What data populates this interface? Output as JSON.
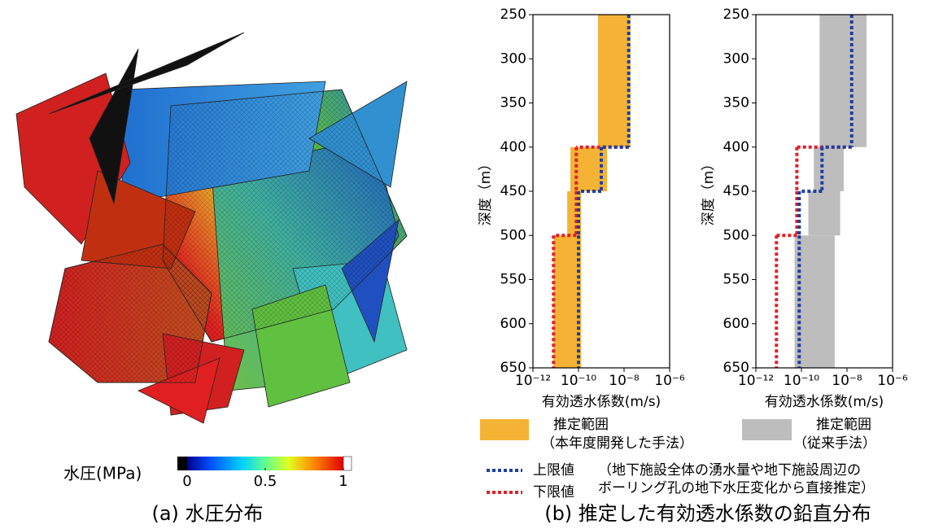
{
  "panel_a": {
    "caption": "(a)  水圧分布",
    "colorbar": {
      "label": "水圧(MPa)",
      "lim": [
        0,
        1
      ],
      "ticks": [
        0,
        0.5,
        1
      ]
    }
  },
  "chart_data": [
    {
      "type": "step-range",
      "ylabel": "深度（m）",
      "xlabel": "有効透水係数(m/s)",
      "xscale": "log",
      "xlim": [
        1e-12,
        1e-06
      ],
      "xticks": [
        {
          "value": 1e-12,
          "label": "10⁻¹²"
        },
        {
          "value": 1e-10,
          "label": "10⁻¹⁰"
        },
        {
          "value": 1e-08,
          "label": "10⁻⁸"
        },
        {
          "value": 1e-06,
          "label": "10⁻⁶"
        }
      ],
      "ylim": [
        650,
        250
      ],
      "yticks": [
        250,
        300,
        350,
        400,
        450,
        500,
        550,
        600,
        650
      ],
      "depth_bounds": [
        250,
        400,
        450,
        500,
        650
      ],
      "range": {
        "color": "#f5b335",
        "low": [
          7.2e-10,
          4.4e-11,
          3.2e-11,
          8e-12
        ],
        "high": [
          1.9e-08,
          1.8e-09,
          1.3e-10,
          1.3e-10
        ]
      },
      "series": [
        {
          "color": "#1f3fa0",
          "values": [
            1.6e-08,
            1e-09,
            1e-10,
            1e-10
          ]
        },
        {
          "color": "#e0202a",
          "values": [
            null,
            8e-11,
            8e-11,
            8e-12
          ]
        }
      ]
    },
    {
      "type": "step-range",
      "ylabel": "深度（m）",
      "xlabel": "有効透水係数(m/s)",
      "xscale": "log",
      "xlim": [
        1e-12,
        1e-06
      ],
      "xticks": [
        {
          "value": 1e-12,
          "label": "10⁻¹²"
        },
        {
          "value": 1e-10,
          "label": "10⁻¹⁰"
        },
        {
          "value": 1e-08,
          "label": "10⁻⁸"
        },
        {
          "value": 1e-06,
          "label": "10⁻⁶"
        }
      ],
      "ylim": [
        650,
        250
      ],
      "yticks": [
        250,
        300,
        350,
        400,
        450,
        500,
        550,
        600,
        650
      ],
      "depth_bounds": [
        250,
        400,
        450,
        500,
        650
      ],
      "range": {
        "color": "#bdbdbd",
        "low": [
          6.3e-10,
          3.5e-10,
          2e-10,
          5e-11
        ],
        "high": [
          7.2e-08,
          7.2e-09,
          5e-09,
          2.9e-09
        ]
      },
      "series": [
        {
          "color": "#1f3fa0",
          "values": [
            1.6e-08,
            8e-10,
            8e-11,
            8e-11
          ]
        },
        {
          "color": "#e0202a",
          "values": [
            null,
            6.3e-11,
            6.3e-11,
            8e-12
          ]
        }
      ]
    }
  ],
  "legend": {
    "range_new": [
      "推定範囲",
      "（本年度開発した手法）"
    ],
    "range_old": [
      "推定範囲",
      "（従来手法）"
    ],
    "upper": "上限値",
    "lower": "下限値",
    "note": [
      "（地下施設全体の湧水量や地下施設周辺の",
      "ボーリング孔の地下水圧変化から直接推定）"
    ]
  },
  "caption_b": "(b)  推定した有効透水係数の鉛直分布"
}
